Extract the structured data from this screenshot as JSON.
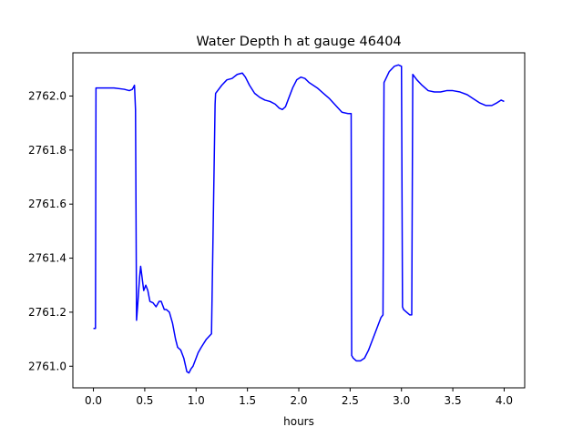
{
  "chart_data": {
    "type": "line",
    "title": "Water Depth h at gauge 46404",
    "xlabel": "hours",
    "ylabel": "",
    "xlim": [
      -0.2,
      4.2
    ],
    "ylim": [
      2760.92,
      2762.16
    ],
    "xticks": [
      0.0,
      0.5,
      1.0,
      1.5,
      2.0,
      2.5,
      3.0,
      3.5,
      4.0
    ],
    "xtick_labels": [
      "0.0",
      "0.5",
      "1.0",
      "1.5",
      "2.0",
      "2.5",
      "3.0",
      "3.5",
      "4.0"
    ],
    "yticks": [
      2761.0,
      2761.2,
      2761.4,
      2761.6,
      2761.8,
      2762.0
    ],
    "ytick_labels": [
      "2761.0",
      "2761.2",
      "2761.4",
      "2761.6",
      "2761.8",
      "2762.0"
    ],
    "grid": false,
    "legend": "none",
    "colors": {
      "line": "#0000ff",
      "axes": "#000000",
      "background": "#ffffff"
    },
    "series": [
      {
        "x": [
          0.0,
          0.02,
          0.025,
          0.1,
          0.2,
          0.3,
          0.35,
          0.38,
          0.4,
          0.41,
          0.42,
          0.43,
          0.45,
          0.46,
          0.47,
          0.49,
          0.51,
          0.53,
          0.55,
          0.58,
          0.61,
          0.64,
          0.66,
          0.69,
          0.71,
          0.74,
          0.77,
          0.8,
          0.82,
          0.85,
          0.88,
          0.91,
          0.93,
          0.95,
          0.97,
          1.0,
          1.02,
          1.05,
          1.1,
          1.15,
          1.185,
          1.19,
          1.25,
          1.3,
          1.35,
          1.4,
          1.45,
          1.48,
          1.52,
          1.57,
          1.62,
          1.67,
          1.72,
          1.77,
          1.81,
          1.84,
          1.87,
          1.9,
          1.94,
          1.98,
          2.02,
          2.06,
          2.1,
          2.14,
          2.18,
          2.24,
          2.3,
          2.36,
          2.42,
          2.48,
          2.51,
          2.515,
          2.53,
          2.56,
          2.6,
          2.64,
          2.68,
          2.72,
          2.76,
          2.8,
          2.82,
          2.83,
          2.88,
          2.93,
          2.97,
          3.0,
          3.01,
          3.02,
          3.05,
          3.08,
          3.1,
          3.11,
          3.15,
          3.2,
          3.26,
          3.32,
          3.38,
          3.44,
          3.5,
          3.57,
          3.64,
          3.7,
          3.76,
          3.82,
          3.88,
          3.93,
          3.97,
          4.0
        ],
        "y": [
          2761.14,
          2761.14,
          2762.03,
          2762.03,
          2762.03,
          2762.025,
          2762.02,
          2762.025,
          2762.04,
          2761.95,
          2761.17,
          2761.22,
          2761.33,
          2761.37,
          2761.34,
          2761.28,
          2761.3,
          2761.28,
          2761.24,
          2761.235,
          2761.22,
          2761.24,
          2761.24,
          2761.21,
          2761.21,
          2761.2,
          2761.16,
          2761.1,
          2761.07,
          2761.06,
          2761.03,
          2760.98,
          2760.975,
          2760.99,
          2761.0,
          2761.03,
          2761.05,
          2761.07,
          2761.1,
          2761.12,
          2761.97,
          2762.01,
          2762.04,
          2762.06,
          2762.065,
          2762.08,
          2762.085,
          2762.07,
          2762.04,
          2762.01,
          2761.995,
          2761.985,
          2761.98,
          2761.97,
          2761.955,
          2761.95,
          2761.96,
          2761.99,
          2762.03,
          2762.06,
          2762.07,
          2762.065,
          2762.05,
          2762.04,
          2762.03,
          2762.01,
          2761.99,
          2761.965,
          2761.94,
          2761.935,
          2761.935,
          2761.04,
          2761.03,
          2761.02,
          2761.02,
          2761.03,
          2761.06,
          2761.1,
          2761.14,
          2761.18,
          2761.19,
          2762.05,
          2762.09,
          2762.11,
          2762.115,
          2762.11,
          2761.22,
          2761.21,
          2761.2,
          2761.19,
          2761.19,
          2762.08,
          2762.06,
          2762.04,
          2762.02,
          2762.015,
          2762.015,
          2762.02,
          2762.02,
          2762.015,
          2762.005,
          2761.99,
          2761.975,
          2761.965,
          2761.965,
          2761.975,
          2761.985,
          2761.98
        ]
      }
    ]
  }
}
